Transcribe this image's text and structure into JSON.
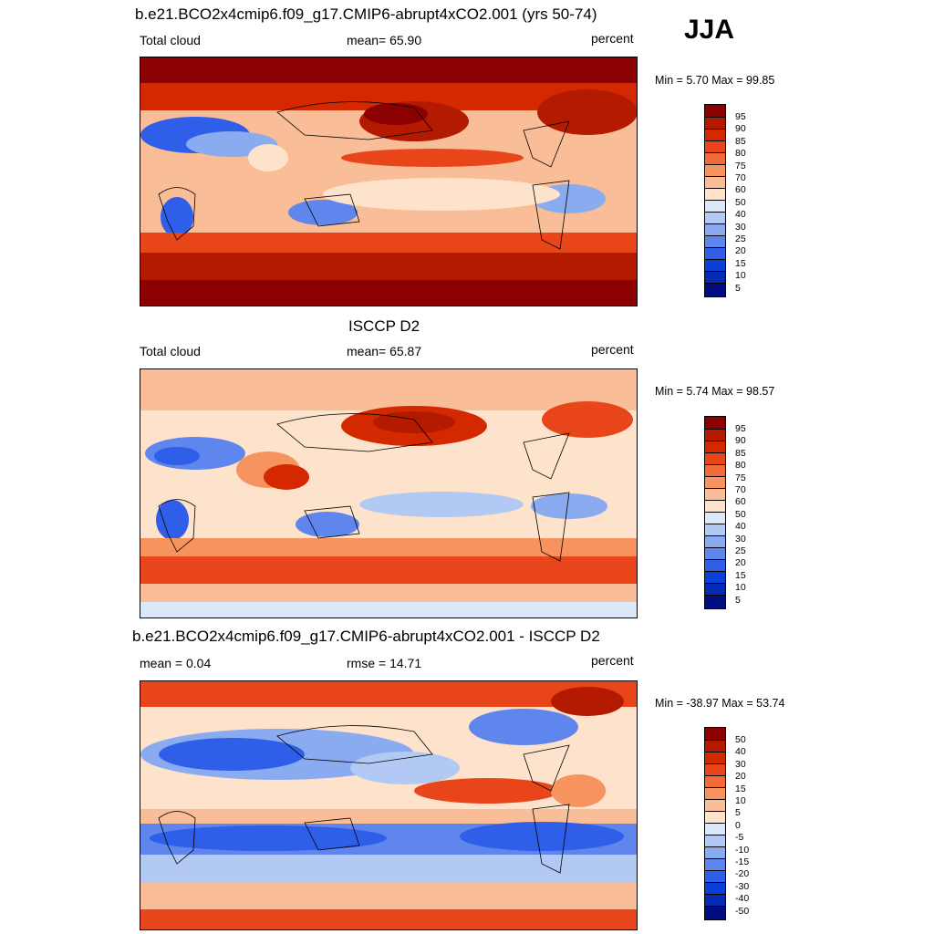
{
  "season": "JJA",
  "panels": [
    {
      "title": "b.e21.BCO2x4cmip6.f09_g17.CMIP6-abrupt4xCO2.001 (yrs 50-74)",
      "left_label": "Total cloud",
      "center_label": "mean=  65.90",
      "right_label": "percent",
      "minmax": "Min =   5.70 Max =  99.85",
      "colorbar_ticks": [
        "95",
        "90",
        "85",
        "80",
        "75",
        "70",
        "60",
        "50",
        "40",
        "30",
        "25",
        "20",
        "15",
        "10",
        "5"
      ]
    },
    {
      "title": "ISCCP D2",
      "left_label": "Total cloud",
      "center_label": "mean=  65.87",
      "right_label": "percent",
      "minmax": "Min =   5.74 Max =  98.57",
      "colorbar_ticks": [
        "95",
        "90",
        "85",
        "80",
        "75",
        "70",
        "60",
        "50",
        "40",
        "30",
        "25",
        "20",
        "15",
        "10",
        "5"
      ]
    },
    {
      "title": "b.e21.BCO2x4cmip6.f09_g17.CMIP6-abrupt4xCO2.001 - ISCCP D2",
      "left_label": "mean =   0.04",
      "center_label": "rmse =  14.71",
      "right_label": "percent",
      "minmax": "Min = -38.97 Max =  53.74",
      "colorbar_ticks": [
        "50",
        "40",
        "30",
        "20",
        "15",
        "10",
        "5",
        "0",
        "-5",
        "-10",
        "-15",
        "-20",
        "-30",
        "-40",
        "-50"
      ]
    }
  ],
  "colors": {
    "absolute_scale": [
      "#8b0000",
      "#b31a00",
      "#d42800",
      "#e8461a",
      "#f26a3a",
      "#f6935f",
      "#f9bd97",
      "#fde2cc",
      "#ffffff",
      "#dbe8fa",
      "#b2c9f4",
      "#8aabf0",
      "#5f86ec",
      "#2f5ee8",
      "#0a3fd8",
      "#062ab4",
      "#000c80"
    ],
    "difference_scale": [
      "#8b0000",
      "#b31a00",
      "#d42800",
      "#e8461a",
      "#f26a3a",
      "#f6935f",
      "#f9bd97",
      "#fde2cc",
      "#ffffff",
      "#dbe8fa",
      "#b2c9f4",
      "#8aabf0",
      "#5f86ec",
      "#2f5ee8",
      "#0a3fd8",
      "#062ab4",
      "#000c80"
    ]
  }
}
